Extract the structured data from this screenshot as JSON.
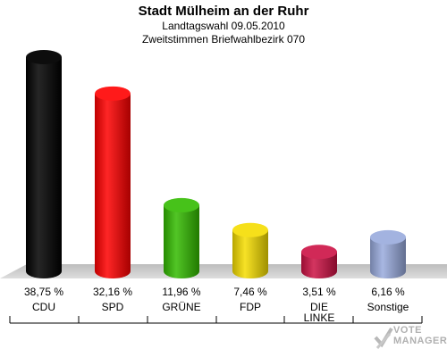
{
  "header": {
    "title": "Stadt Mülheim an der Ruhr",
    "subtitle1": "Landtagswahl 09.05.2010",
    "subtitle2": "Zweitstimmen Briefwahlbezirk 070"
  },
  "chart_data": {
    "type": "bar",
    "categories": [
      "CDU",
      "SPD",
      "GRÜNE",
      "FDP",
      "DIE LINKE",
      "Sonstige"
    ],
    "values": [
      38.75,
      32.16,
      11.96,
      7.46,
      3.51,
      6.16
    ],
    "value_labels": [
      "38,75 %",
      "32,16 %",
      "11,96 %",
      "7,46 %",
      "3,51 %",
      "6,16 %"
    ],
    "colors": [
      "#000000",
      "#ff0000",
      "#33bb00",
      "#f5dd00",
      "#cc1144",
      "#99aadd"
    ],
    "grid": false,
    "legend": "none"
  },
  "watermark": {
    "line1": "VOTE",
    "line2": "MANAGER"
  }
}
